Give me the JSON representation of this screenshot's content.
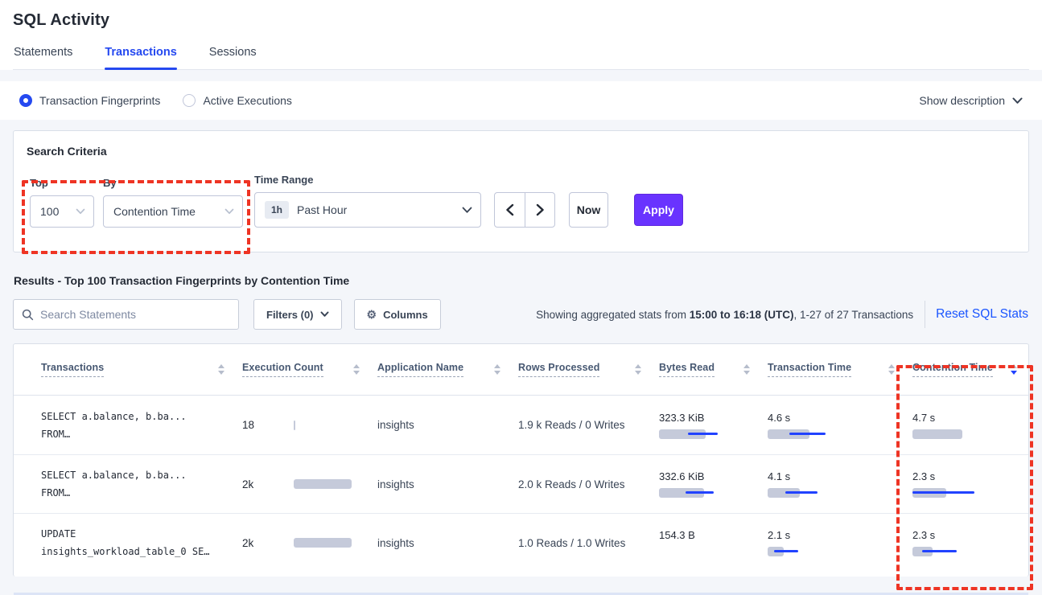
{
  "page": {
    "title": "SQL Activity"
  },
  "tabs": [
    {
      "label": "Statements",
      "active": false
    },
    {
      "label": "Transactions",
      "active": true
    },
    {
      "label": "Sessions",
      "active": false
    }
  ],
  "view_selector": {
    "options": [
      {
        "label": "Transaction Fingerprints",
        "selected": true
      },
      {
        "label": "Active Executions",
        "selected": false
      }
    ],
    "show_description_label": "Show description"
  },
  "search_criteria": {
    "heading": "Search Criteria",
    "top": {
      "label": "Top",
      "value": "100"
    },
    "by": {
      "label": "By",
      "value": "Contention Time"
    },
    "time_range": {
      "label": "Time Range",
      "badge": "1h",
      "value": "Past Hour"
    },
    "now_label": "Now",
    "apply_label": "Apply"
  },
  "results": {
    "heading": "Results - Top 100 Transaction Fingerprints by Contention Time",
    "search_placeholder": "Search Statements",
    "filters_label": "Filters (0)",
    "columns_label": "Columns",
    "stats_prefix": "Showing aggregated stats from ",
    "stats_range": "15:00 to 16:18 (UTC)",
    "stats_suffix": ", 1-27 of 27 Transactions",
    "reset_label": "Reset SQL Stats"
  },
  "table": {
    "columns": [
      {
        "label": "Transactions",
        "sort": "none"
      },
      {
        "label": "Execution Count",
        "sort": "none"
      },
      {
        "label": "Application Name",
        "sort": "none"
      },
      {
        "label": "Rows Processed",
        "sort": "none"
      },
      {
        "label": "Bytes Read",
        "sort": "none"
      },
      {
        "label": "Transaction Time",
        "sort": "none"
      },
      {
        "label": "Contention Time",
        "sort": "desc"
      }
    ],
    "rows": [
      {
        "query_line1": "SELECT a.balance, b.ba...",
        "query_line2": "FROM…",
        "exec": {
          "value": "18",
          "bar": {
            "gray_w": 2
          }
        },
        "app": "insights",
        "rows_processed": "1.9 k Reads / 0 Writes",
        "bytes": {
          "value": "323.3 KiB",
          "bar": {
            "gray_w": 58,
            "blue_l": 36,
            "blue_w": 37
          }
        },
        "txn": {
          "value": "4.6 s",
          "bar": {
            "gray_w": 52,
            "blue_l": 27,
            "blue_w": 45
          }
        },
        "cont": {
          "value": "4.7 s",
          "bar": {
            "gray_w": 62
          }
        }
      },
      {
        "query_line1": "SELECT a.balance, b.ba...",
        "query_line2": "FROM…",
        "exec": {
          "value": "2k",
          "bar": {
            "gray_w": 72
          }
        },
        "app": "insights",
        "rows_processed": "2.0 k Reads / 0 Writes",
        "bytes": {
          "value": "332.6 KiB",
          "bar": {
            "gray_w": 56,
            "blue_l": 33,
            "blue_w": 35
          }
        },
        "txn": {
          "value": "4.1 s",
          "bar": {
            "gray_w": 40,
            "blue_l": 22,
            "blue_w": 40
          }
        },
        "cont": {
          "value": "2.3 s",
          "bar": {
            "gray_w": 42,
            "blue_l": 0,
            "blue_w": 77
          }
        }
      },
      {
        "query_line1": "UPDATE",
        "query_line2": "insights_workload_table_0 SE…",
        "exec": {
          "value": "2k",
          "bar": {
            "gray_w": 72
          }
        },
        "app": "insights",
        "rows_processed": "1.0 Reads / 1.0 Writes",
        "bytes": {
          "value": "154.3 B",
          "bar": null
        },
        "txn": {
          "value": "2.1 s",
          "bar": {
            "gray_w": 20,
            "blue_l": 8,
            "blue_w": 30
          }
        },
        "cont": {
          "value": "2.3 s",
          "bar": {
            "gray_w": 25,
            "blue_l": 12,
            "blue_w": 43
          }
        }
      }
    ]
  },
  "colors": {
    "accent_blue": "#2549f0",
    "bar_blue": "#2142ff",
    "apply_purple": "#6933ff",
    "annotation_red": "#ee3424",
    "bar_gray": "#c5cada"
  }
}
